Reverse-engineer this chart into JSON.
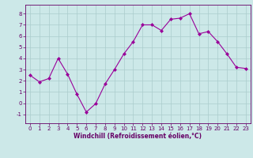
{
  "x": [
    0,
    1,
    2,
    3,
    4,
    5,
    6,
    7,
    8,
    9,
    10,
    11,
    12,
    13,
    14,
    15,
    16,
    17,
    18,
    19,
    20,
    21,
    22,
    23
  ],
  "y": [
    2.5,
    1.9,
    2.2,
    4.0,
    2.6,
    0.8,
    -0.8,
    -0.05,
    1.7,
    3.0,
    4.4,
    5.5,
    7.0,
    7.0,
    6.5,
    7.5,
    7.6,
    8.0,
    6.2,
    6.4,
    5.5,
    4.4,
    3.2,
    3.1
  ],
  "line_color": "#990099",
  "marker": "D",
  "marker_size": 2,
  "bg_color": "#cce8e8",
  "grid_color": "#aacccc",
  "xlabel": "Windchill (Refroidissement éolien,°C)",
  "xlabel_color": "#660066",
  "tick_color": "#660066",
  "ylim": [
    -1.8,
    8.8
  ],
  "xlim": [
    -0.5,
    23.5
  ],
  "yticks": [
    -1,
    0,
    1,
    2,
    3,
    4,
    5,
    6,
    7,
    8
  ],
  "xticks": [
    0,
    1,
    2,
    3,
    4,
    5,
    6,
    7,
    8,
    9,
    10,
    11,
    12,
    13,
    14,
    15,
    16,
    17,
    18,
    19,
    20,
    21,
    22,
    23
  ],
  "tick_fontsize": 5,
  "xlabel_fontsize": 5.5,
  "linewidth": 0.8
}
